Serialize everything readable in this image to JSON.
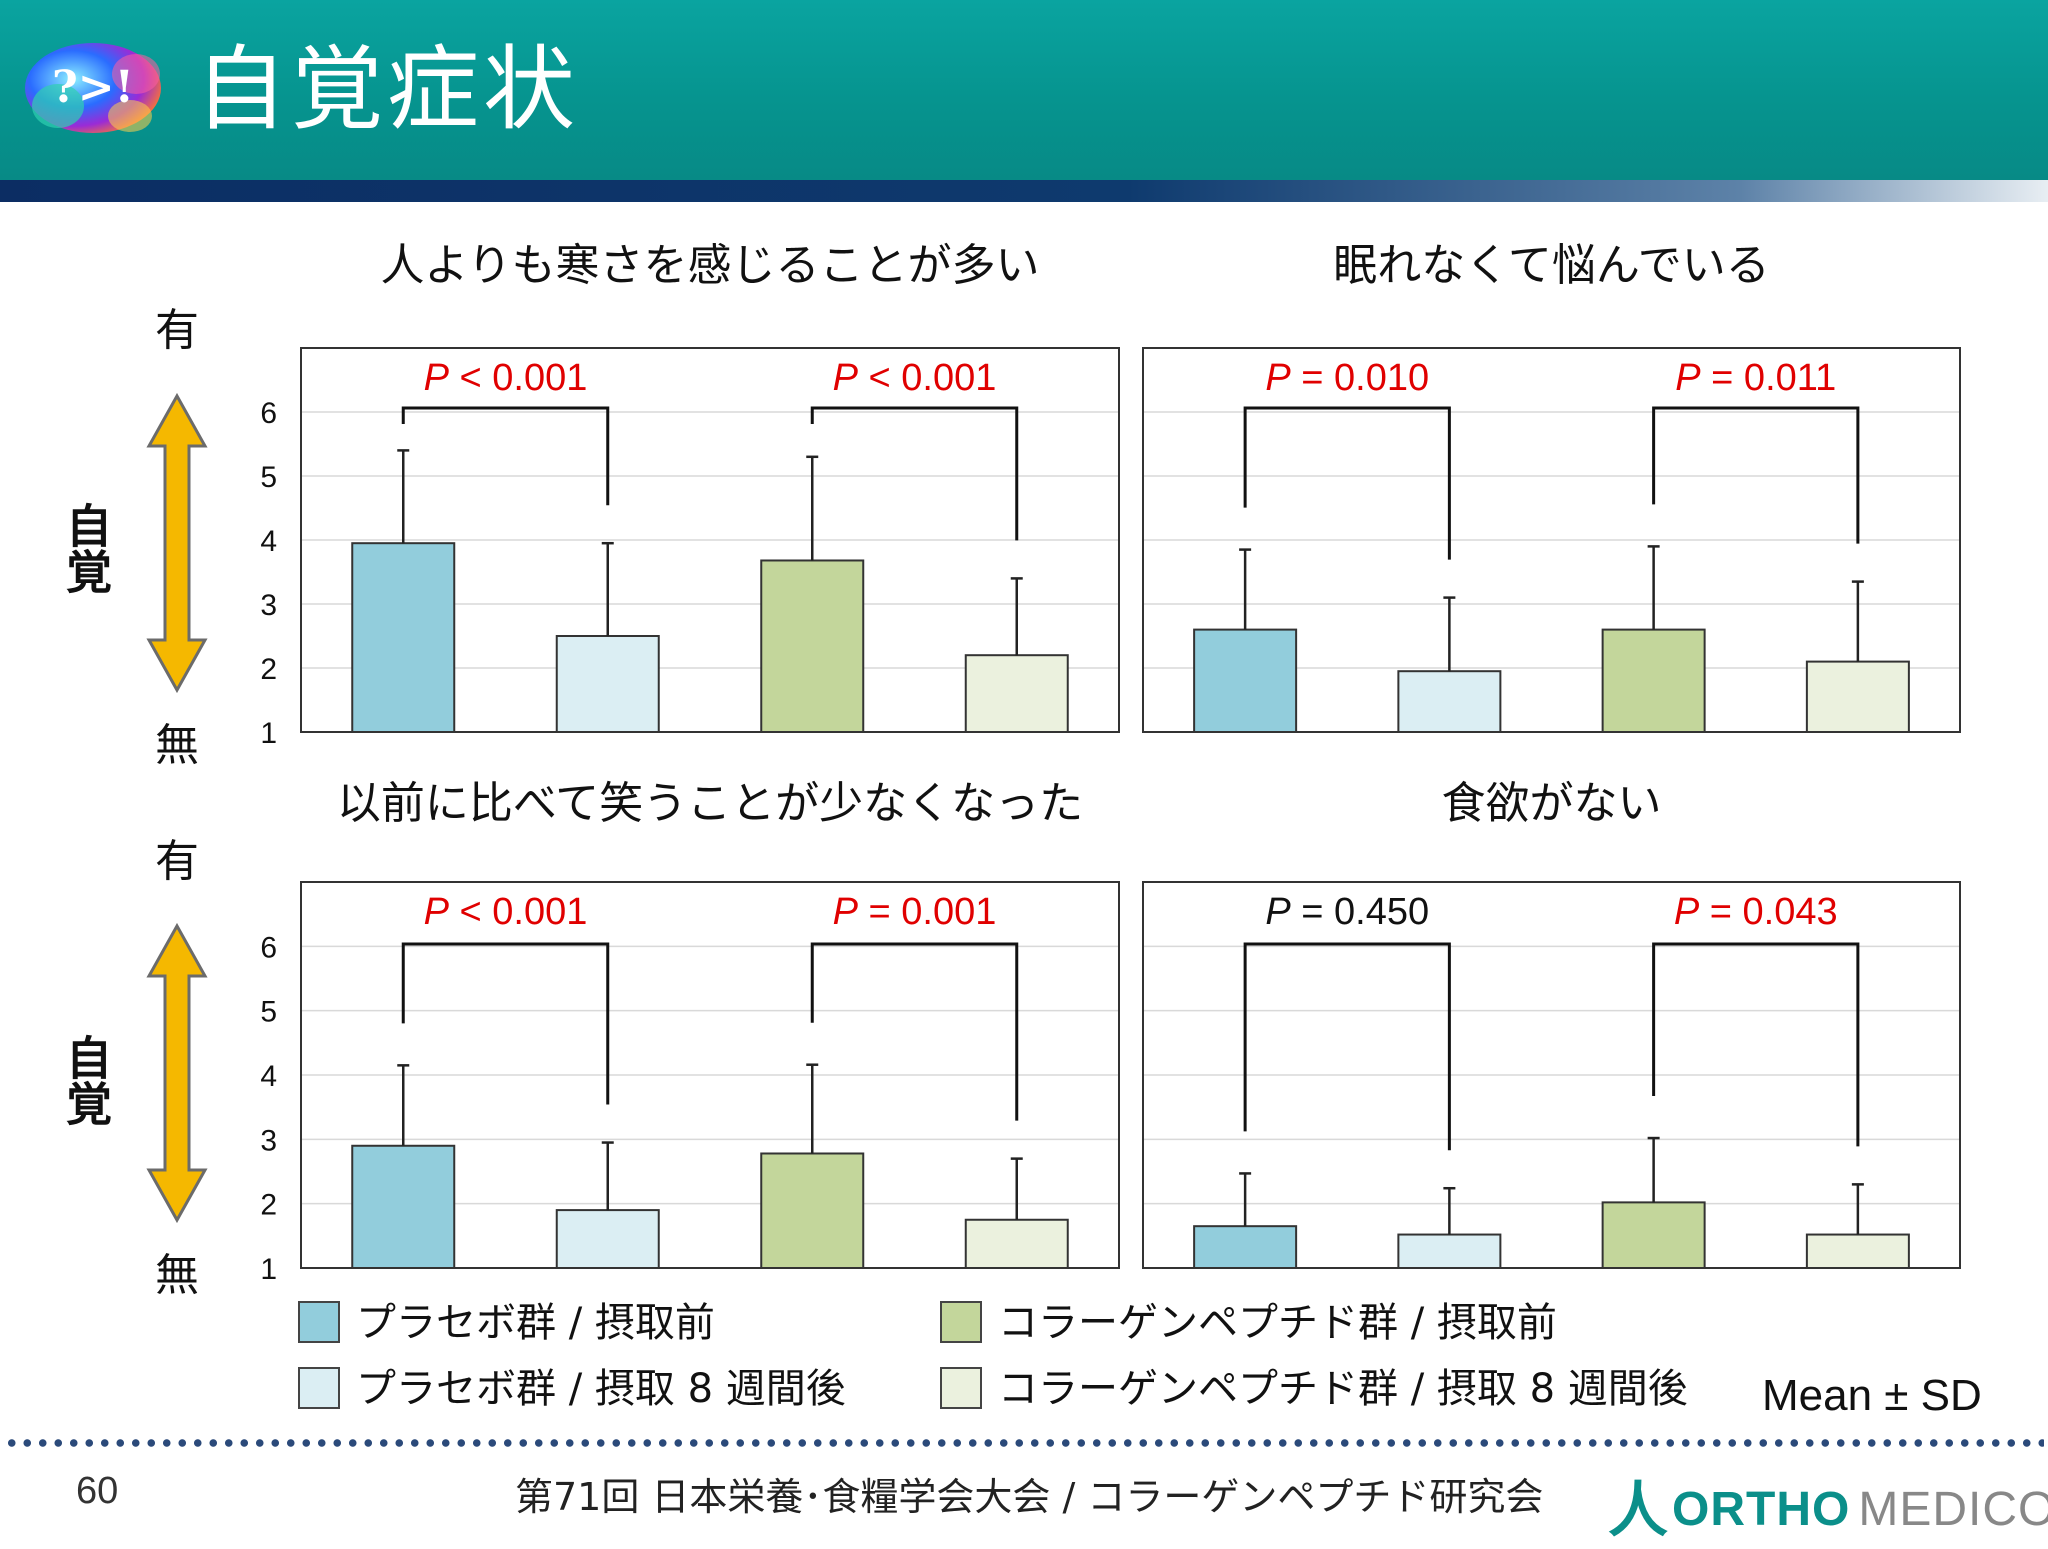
{
  "header": {
    "title": "自覚症状",
    "logo_text": "?>!"
  },
  "y_axis_side": {
    "top_label": "有",
    "bottom_label": "無",
    "axis_label": "自覚"
  },
  "chart_data": [
    {
      "type": "bar",
      "title": "人よりも寒さを感じることが多い",
      "ylim": [
        1,
        7
      ],
      "yticks": [
        1,
        2,
        3,
        4,
        5,
        6
      ],
      "grid": true,
      "groups": [
        {
          "values": [
            3.95,
            2.5
          ],
          "sd": [
            1.45,
            1.45
          ],
          "p_label": "P",
          "p_value": "< 0.001",
          "significant": true
        },
        {
          "values": [
            3.68,
            2.2
          ],
          "sd": [
            1.62,
            1.2
          ],
          "p_label": "P",
          "p_value": "< 0.001",
          "significant": true
        }
      ]
    },
    {
      "type": "bar",
      "title": "眠れなくて悩んでいる",
      "ylim": [
        1,
        7
      ],
      "yticks": [
        1,
        2,
        3,
        4,
        5,
        6
      ],
      "grid": true,
      "groups": [
        {
          "values": [
            2.6,
            1.95
          ],
          "sd": [
            1.25,
            1.15
          ],
          "p_label": "P",
          "p_value": "= 0.010",
          "significant": true
        },
        {
          "values": [
            2.6,
            2.1
          ],
          "sd": [
            1.3,
            1.25
          ],
          "p_label": "P",
          "p_value": "= 0.011",
          "significant": true
        }
      ]
    },
    {
      "type": "bar",
      "title": "以前に比べて笑うことが少なくなった",
      "ylim": [
        1,
        7
      ],
      "yticks": [
        1,
        2,
        3,
        4,
        5,
        6
      ],
      "grid": true,
      "groups": [
        {
          "values": [
            2.9,
            1.9
          ],
          "sd": [
            1.25,
            1.05
          ],
          "p_label": "P",
          "p_value": "< 0.001",
          "significant": true
        },
        {
          "values": [
            2.78,
            1.75
          ],
          "sd": [
            1.38,
            0.95
          ],
          "p_label": "P",
          "p_value": "= 0.001",
          "significant": true
        }
      ]
    },
    {
      "type": "bar",
      "title": "食欲がない",
      "ylim": [
        1,
        7
      ],
      "yticks": [
        1,
        2,
        3,
        4,
        5,
        6
      ],
      "grid": true,
      "groups": [
        {
          "values": [
            1.65,
            1.52
          ],
          "sd": [
            0.82,
            0.72
          ],
          "p_label": "P",
          "p_value": "= 0.450",
          "significant": false
        },
        {
          "values": [
            2.02,
            1.52
          ],
          "sd": [
            1.0,
            0.78
          ],
          "p_label": "P",
          "p_value": "= 0.043",
          "significant": true
        }
      ]
    }
  ],
  "legend": [
    {
      "label": "プラセボ群 / 摂取前",
      "color": "#92cddc"
    },
    {
      "label": "コラーゲンペプチド群 / 摂取前",
      "color": "#c3d69b"
    },
    {
      "label": "プラセボ群 / 摂取 8 週間後",
      "color": "#dbeef3"
    },
    {
      "label": "コラーゲンペプチド群 / 摂取 8 週間後",
      "color": "#ebf1de"
    }
  ],
  "note": "Mean ± SD",
  "colors": {
    "significant": "#e00000",
    "non_significant": "#111111",
    "arrow": "#f5b800",
    "bar_stroke": "#333333"
  },
  "footer": {
    "page_number": "60",
    "conference": "第71回 日本栄養･食糧学会大会 / コラーゲンペプチド研究会",
    "company_word1": "ORTHO",
    "company_word2": "MEDICO"
  }
}
